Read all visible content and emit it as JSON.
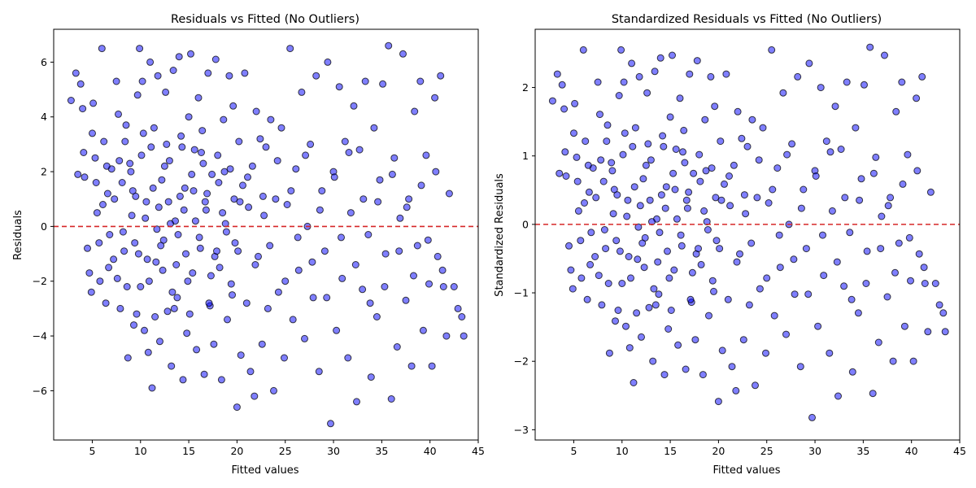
{
  "chart_data": [
    {
      "type": "scatter",
      "title": "Residuals vs Fitted (No Outliers)",
      "xlabel": "Fitted values",
      "ylabel": "Residuals",
      "xlim": [
        1,
        45
      ],
      "ylim": [
        -7.8,
        7.2
      ],
      "xticks": [
        5,
        10,
        15,
        20,
        25,
        30,
        35,
        40,
        45
      ],
      "yticks": [
        -6,
        -4,
        -2,
        0,
        2,
        4,
        6
      ],
      "reference_line": {
        "y": 0,
        "color": "#d62728",
        "style": "dashed"
      },
      "grid": false,
      "legend": "none",
      "point_color": "#0000ff",
      "point_edge_color": "#000000",
      "points": [
        [
          2.8,
          4.6
        ],
        [
          3.3,
          5.6
        ],
        [
          3.8,
          5.2
        ],
        [
          4.0,
          4.3
        ],
        [
          4.2,
          1.8
        ],
        [
          3.5,
          1.9
        ],
        [
          4.1,
          2.7
        ],
        [
          4.5,
          -0.8
        ],
        [
          4.7,
          -1.7
        ],
        [
          4.9,
          -2.4
        ],
        [
          5.0,
          3.4
        ],
        [
          5.1,
          4.5
        ],
        [
          5.3,
          2.5
        ],
        [
          5.5,
          0.5
        ],
        [
          5.8,
          -2.0
        ],
        [
          6.0,
          6.5
        ],
        [
          6.2,
          3.1
        ],
        [
          6.4,
          -2.8
        ],
        [
          6.6,
          1.2
        ],
        [
          6.8,
          -0.3
        ],
        [
          7.0,
          2.1
        ],
        [
          7.2,
          -1.2
        ],
        [
          7.5,
          5.3
        ],
        [
          7.7,
          4.1
        ],
        [
          7.9,
          -3.0
        ],
        [
          8.1,
          1.6
        ],
        [
          8.3,
          -0.9
        ],
        [
          8.5,
          3.7
        ],
        [
          8.7,
          -4.8
        ],
        [
          8.9,
          2.3
        ],
        [
          9.1,
          0.4
        ],
        [
          9.3,
          -3.6
        ],
        [
          9.5,
          1.1
        ],
        [
          9.7,
          4.8
        ],
        [
          9.9,
          6.5
        ],
        [
          10.0,
          -2.2
        ],
        [
          10.2,
          5.3
        ],
        [
          10.4,
          -3.8
        ],
        [
          10.6,
          0.9
        ],
        [
          10.8,
          -4.6
        ],
        [
          11.0,
          6.0
        ],
        [
          11.1,
          2.9
        ],
        [
          11.2,
          -5.9
        ],
        [
          11.4,
          3.6
        ],
        [
          11.6,
          -1.3
        ],
        [
          11.8,
          5.5
        ],
        [
          12.0,
          -4.2
        ],
        [
          12.2,
          1.7
        ],
        [
          12.4,
          -0.5
        ],
        [
          12.6,
          4.9
        ],
        [
          12.8,
          -3.1
        ],
        [
          13.0,
          2.4
        ],
        [
          13.2,
          -5.1
        ],
        [
          13.4,
          5.7
        ],
        [
          13.6,
          0.2
        ],
        [
          13.8,
          -2.6
        ],
        [
          14.0,
          6.2
        ],
        [
          14.2,
          3.3
        ],
        [
          14.4,
          -5.6
        ],
        [
          14.6,
          1.4
        ],
        [
          14.8,
          -3.9
        ],
        [
          15.0,
          4.0
        ],
        [
          15.2,
          6.3
        ],
        [
          15.4,
          -1.7
        ],
        [
          15.6,
          2.8
        ],
        [
          15.8,
          -4.5
        ],
        [
          16.0,
          4.7
        ],
        [
          16.2,
          -0.8
        ],
        [
          16.4,
          3.5
        ],
        [
          16.6,
          -5.4
        ],
        [
          16.8,
          0.6
        ],
        [
          17.0,
          5.6
        ],
        [
          17.2,
          -2.9
        ],
        [
          17.4,
          1.9
        ],
        [
          17.6,
          -4.3
        ],
        [
          17.8,
          6.1
        ],
        [
          18.0,
          2.6
        ],
        [
          18.2,
          -1.5
        ],
        [
          18.4,
          -5.6
        ],
        [
          18.6,
          3.9
        ],
        [
          18.8,
          0.1
        ],
        [
          19.0,
          -3.4
        ],
        [
          19.2,
          5.5
        ],
        [
          19.4,
          -2.1
        ],
        [
          19.6,
          4.4
        ],
        [
          19.8,
          -0.6
        ],
        [
          20.0,
          -6.6
        ],
        [
          20.2,
          3.1
        ],
        [
          20.4,
          -4.7
        ],
        [
          20.6,
          1.5
        ],
        [
          20.8,
          5.6
        ],
        [
          21.0,
          -2.8
        ],
        [
          21.2,
          0.7
        ],
        [
          21.4,
          -5.3
        ],
        [
          21.6,
          2.2
        ],
        [
          21.8,
          -6.2
        ],
        [
          22.0,
          4.2
        ],
        [
          22.2,
          -1.1
        ],
        [
          22.4,
          3.2
        ],
        [
          22.6,
          -4.3
        ],
        [
          22.8,
          0.4
        ],
        [
          23.0,
          2.9
        ],
        [
          23.2,
          -3.0
        ],
        [
          23.5,
          3.9
        ],
        [
          23.8,
          -6.0
        ],
        [
          24.0,
          1.0
        ],
        [
          24.3,
          -2.4
        ],
        [
          24.6,
          3.6
        ],
        [
          24.9,
          -4.8
        ],
        [
          25.2,
          0.8
        ],
        [
          25.5,
          6.5
        ],
        [
          25.8,
          -3.4
        ],
        [
          26.1,
          2.1
        ],
        [
          26.4,
          -1.6
        ],
        [
          26.7,
          4.9
        ],
        [
          27.0,
          -4.1
        ],
        [
          27.3,
          0.0
        ],
        [
          27.6,
          3.0
        ],
        [
          27.9,
          -2.6
        ],
        [
          28.2,
          5.5
        ],
        [
          28.5,
          -5.3
        ],
        [
          28.8,
          1.3
        ],
        [
          29.1,
          -0.9
        ],
        [
          29.4,
          6.0
        ],
        [
          29.7,
          -7.2
        ],
        [
          30.0,
          2.0
        ],
        [
          30.3,
          -3.8
        ],
        [
          30.6,
          5.1
        ],
        [
          30.9,
          -1.9
        ],
        [
          31.2,
          3.1
        ],
        [
          31.5,
          -4.8
        ],
        [
          31.8,
          0.5
        ],
        [
          32.1,
          4.4
        ],
        [
          32.4,
          -6.4
        ],
        [
          32.7,
          2.8
        ],
        [
          33.0,
          -2.3
        ],
        [
          33.3,
          5.3
        ],
        [
          33.6,
          -0.3
        ],
        [
          33.9,
          -5.5
        ],
        [
          34.2,
          3.6
        ],
        [
          34.5,
          -3.3
        ],
        [
          34.8,
          1.7
        ],
        [
          35.1,
          5.2
        ],
        [
          35.4,
          -1.0
        ],
        [
          35.7,
          6.6
        ],
        [
          36.0,
          -6.3
        ],
        [
          36.3,
          2.5
        ],
        [
          36.6,
          -4.4
        ],
        [
          36.9,
          0.3
        ],
        [
          37.2,
          6.3
        ],
        [
          37.5,
          -2.7
        ],
        [
          37.8,
          1.0
        ],
        [
          38.1,
          -5.1
        ],
        [
          38.4,
          4.2
        ],
        [
          38.7,
          -0.7
        ],
        [
          39.0,
          5.3
        ],
        [
          39.3,
          -3.8
        ],
        [
          39.6,
          2.6
        ],
        [
          39.9,
          -2.1
        ],
        [
          40.2,
          -5.1
        ],
        [
          40.5,
          4.7
        ],
        [
          40.8,
          -1.1
        ],
        [
          41.1,
          5.5
        ],
        [
          41.4,
          -2.2
        ],
        [
          41.7,
          -4.0
        ],
        [
          42.0,
          1.2
        ],
        [
          42.5,
          -2.2
        ],
        [
          42.9,
          -3.0
        ],
        [
          43.3,
          -3.3
        ],
        [
          43.5,
          -4.0
        ],
        [
          6.1,
          0.8
        ],
        [
          7.3,
          1.0
        ],
        [
          8.2,
          -0.2
        ],
        [
          9.0,
          2.0
        ],
        [
          9.8,
          -1.0
        ],
        [
          10.5,
          0.3
        ],
        [
          11.3,
          1.4
        ],
        [
          12.1,
          -0.7
        ],
        [
          12.9,
          0.9
        ],
        [
          13.7,
          -1.4
        ],
        [
          14.5,
          0.6
        ],
        [
          15.3,
          1.9
        ],
        [
          16.1,
          -0.4
        ],
        [
          16.9,
          1.2
        ],
        [
          17.7,
          -1.1
        ],
        [
          18.5,
          0.5
        ],
        [
          19.3,
          2.1
        ],
        [
          20.1,
          -0.9
        ],
        [
          5.4,
          1.6
        ],
        [
          6.7,
          -1.5
        ],
        [
          7.8,
          2.4
        ],
        [
          8.6,
          -2.2
        ],
        [
          9.4,
          -0.6
        ],
        [
          10.1,
          2.6
        ],
        [
          10.9,
          -2.0
        ],
        [
          11.7,
          -0.1
        ],
        [
          12.5,
          2.2
        ],
        [
          13.3,
          -2.4
        ],
        [
          14.1,
          1.1
        ],
        [
          14.9,
          -2.0
        ],
        [
          15.7,
          0.2
        ],
        [
          16.5,
          2.3
        ],
        [
          17.3,
          -1.8
        ],
        [
          18.1,
          1.6
        ],
        [
          18.9,
          -0.2
        ],
        [
          19.7,
          1.0
        ],
        [
          8.4,
          3.1
        ],
        [
          9.6,
          -3.2
        ],
        [
          10.3,
          3.4
        ],
        [
          11.5,
          -3.3
        ],
        [
          12.7,
          3.0
        ],
        [
          13.5,
          -3.0
        ],
        [
          14.3,
          2.9
        ],
        [
          15.1,
          -3.2
        ],
        [
          16.3,
          2.7
        ],
        [
          17.1,
          -2.8
        ],
        [
          11.9,
          0.7
        ],
        [
          13.1,
          0.1
        ],
        [
          13.9,
          -0.3
        ],
        [
          14.7,
          -1.0
        ],
        [
          15.5,
          1.3
        ],
        [
          16.7,
          0.9
        ],
        [
          12.3,
          -1.6
        ],
        [
          10.7,
          -1.2
        ],
        [
          9.2,
          1.3
        ],
        [
          7.6,
          -1.9
        ],
        [
          6.5,
          2.2
        ],
        [
          5.7,
          -0.6
        ],
        [
          17.9,
          -0.9
        ],
        [
          18.7,
          2.0
        ],
        [
          19.5,
          -2.5
        ],
        [
          20.3,
          0.9
        ],
        [
          21.1,
          1.8
        ],
        [
          21.9,
          -1.4
        ],
        [
          22.7,
          1.1
        ],
        [
          23.4,
          -0.7
        ],
        [
          24.2,
          2.4
        ],
        [
          25.0,
          -2.0
        ],
        [
          25.6,
          1.3
        ],
        [
          26.3,
          -0.4
        ],
        [
          27.1,
          2.6
        ],
        [
          27.8,
          -1.3
        ],
        [
          28.6,
          0.6
        ],
        [
          29.3,
          -2.6
        ],
        [
          30.1,
          1.8
        ],
        [
          30.8,
          -0.4
        ],
        [
          31.6,
          2.7
        ],
        [
          32.3,
          -1.4
        ],
        [
          33.1,
          1.0
        ],
        [
          33.8,
          -2.8
        ],
        [
          34.6,
          0.9
        ],
        [
          35.3,
          -2.2
        ],
        [
          36.1,
          1.9
        ],
        [
          36.8,
          -0.9
        ],
        [
          37.6,
          0.7
        ],
        [
          38.3,
          -1.8
        ],
        [
          39.1,
          1.5
        ],
        [
          39.8,
          -0.5
        ],
        [
          40.6,
          2.0
        ],
        [
          41.3,
          -1.6
        ]
      ]
    },
    {
      "type": "scatter",
      "title": "Standardized Residuals vs Fitted (No Outliers)",
      "xlabel": "Fitted values",
      "ylabel": "Standardized Residuals",
      "xlim": [
        1,
        45
      ],
      "ylim": [
        -3.15,
        2.85
      ],
      "xticks": [
        5,
        10,
        15,
        20,
        25,
        30,
        35,
        40,
        45
      ],
      "yticks": [
        -3,
        -2,
        -1,
        0,
        1,
        2
      ],
      "reference_line": {
        "y": 0,
        "color": "#d62728",
        "style": "dashed"
      },
      "grid": false,
      "legend": "none",
      "point_color": "#0000ff",
      "point_edge_color": "#000000",
      "residual_scale": 0.392
    }
  ]
}
